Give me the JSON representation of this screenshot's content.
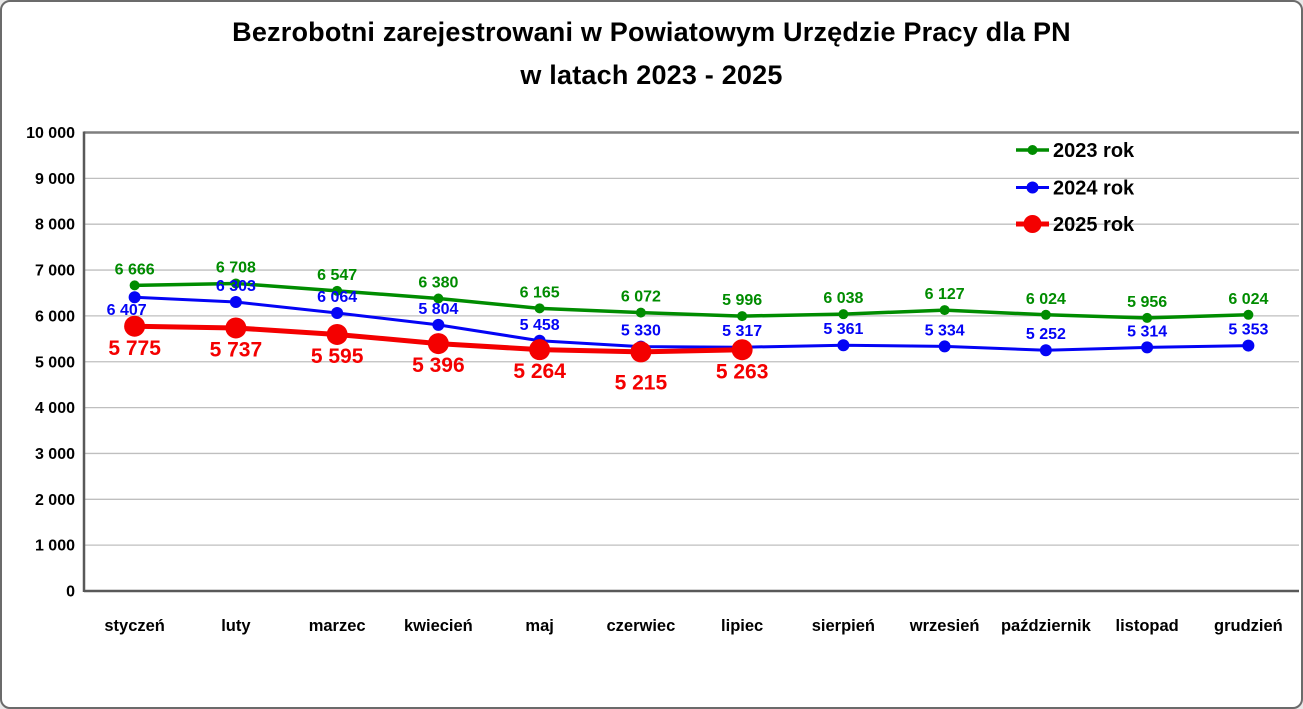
{
  "title": {
    "line1": "Bezrobotni zarejestrowani w Powiatowym Urzędzie Pracy dla PN",
    "line2": "w latach 2023 - 2025"
  },
  "chart_data": {
    "type": "line",
    "title": "Bezrobotni zarejestrowani w Powiatowym Urzędzie Pracy dla PN w latach 2023 - 2025",
    "categories": [
      "styczeń",
      "luty",
      "marzec",
      "kwiecień",
      "maj",
      "czerwiec",
      "lipiec",
      "sierpień",
      "wrzesień",
      "październik",
      "listopad",
      "grudzień"
    ],
    "series": [
      {
        "name": "2023 rok",
        "color": "#008C00",
        "values": [
          6666,
          6708,
          6547,
          6380,
          6165,
          6072,
          5996,
          6038,
          6127,
          6024,
          5956,
          6024
        ],
        "label_position": "above"
      },
      {
        "name": "2024 rok",
        "color": "#0404F5",
        "values": [
          6407,
          6303,
          6064,
          5804,
          5458,
          5330,
          5317,
          5361,
          5334,
          5252,
          5314,
          5353
        ],
        "label_position": "above"
      },
      {
        "name": "2025 rok",
        "color": "#F40000",
        "values": [
          5775,
          5737,
          5595,
          5396,
          5264,
          5215,
          5263
        ],
        "label_position": "below"
      }
    ],
    "xlabel": "",
    "ylabel": "",
    "ylim": [
      0,
      10000
    ],
    "ytick_step": 1000,
    "ytick_labels": [
      "0",
      "1 000",
      "2 000",
      "3 000",
      "4 000",
      "5 000",
      "6 000",
      "7 000",
      "8 000",
      "9 000",
      "10 000"
    ],
    "grid": true,
    "legend_position": "upper-right"
  },
  "colors": {
    "background": "#FFFFFF",
    "text": "#000000",
    "grid_minor": "#BFBFBF",
    "grid_top": "#7F7F7F",
    "axis": "#595959",
    "frame": "#6B6B6B"
  }
}
